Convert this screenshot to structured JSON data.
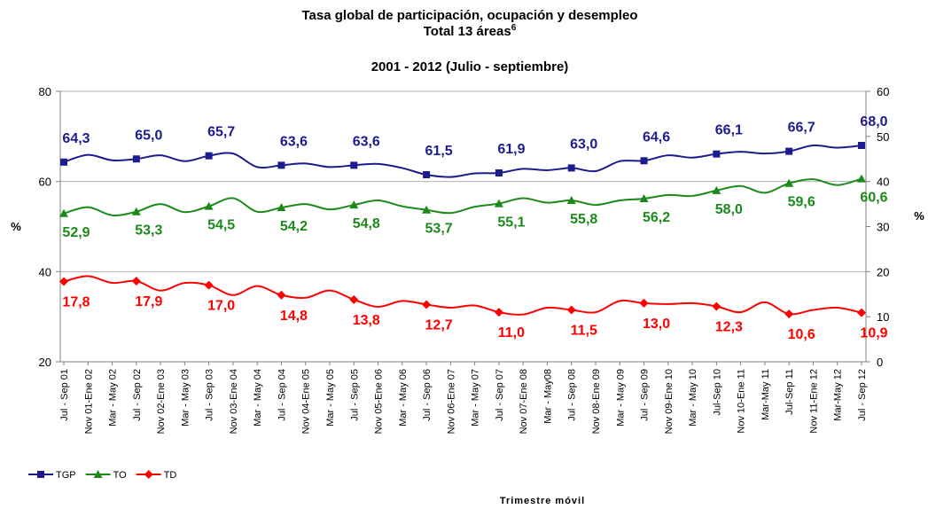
{
  "chart_data": {
    "type": "line",
    "title": "Tasa global de participación, ocupación y desempleo",
    "subtitle": "Total 13 áreas",
    "subtitle_note": "6",
    "period": "2001 - 2012 (Julio - septiembre)",
    "ylabel": "%",
    "y2label": "%",
    "xlabel": "Trimestre móvil",
    "categories": [
      "Jul - Sep 01",
      "Nov 01-Ene 02",
      "Mar - May 02",
      "Jul - Sep 02",
      "Nov 02-Ene 03",
      "Mar - May 03",
      "Jul - Sep 03",
      "Nov 03-Ene 04",
      "Mar - May 04",
      "Jul - Sep 04",
      "Nov 04-Ene 05",
      "Mar - May 05",
      "Jul - Sep 05",
      "Nov 05-Ene 06",
      "Mar - May 06",
      "Jul - Sep 06",
      "Nov 06-Ene 07",
      "Mar - May 07",
      "Jul - Sep 07",
      "Nov 07-Ene 08",
      "Mar - May08",
      "Jul - Sep 08",
      "Nov 08-Ene 09",
      "Mar - May 09",
      "Jul - Sep 09",
      "Nov 09-Ene 10",
      "Mar - May 10",
      "Jul-Sep 10",
      "Nov 10-Ene 11",
      "Mar-May 11",
      "Jul-Sep 11",
      "Nov 11-Ene 12",
      "Mar-May 12",
      "Jul - Sep 12"
    ],
    "series": [
      {
        "name": "TGP",
        "color": "#1c1c8e",
        "marker": "square",
        "axis": "y",
        "values": [
          64.3,
          65.9,
          64.7,
          65.0,
          65.8,
          64.5,
          65.7,
          66.2,
          63.2,
          63.6,
          64.0,
          63.2,
          63.6,
          63.9,
          63.0,
          61.5,
          61.0,
          61.8,
          61.9,
          62.8,
          62.5,
          63.0,
          62.3,
          64.5,
          64.6,
          65.8,
          65.3,
          66.1,
          66.6,
          66.2,
          66.7,
          68.0,
          67.5,
          68.0
        ],
        "value_labels": [
          "64,3",
          null,
          null,
          "65,0",
          null,
          null,
          "65,7",
          null,
          null,
          "63,6",
          null,
          null,
          "63,6",
          null,
          null,
          "61,5",
          null,
          null,
          "61,9",
          null,
          null,
          "63,0",
          null,
          null,
          "64,6",
          null,
          null,
          "66,1",
          null,
          null,
          "66,7",
          null,
          null,
          "68,0"
        ]
      },
      {
        "name": "TO",
        "color": "#1b8a1b",
        "marker": "triangle",
        "axis": "y",
        "values": [
          52.9,
          54.3,
          52.5,
          53.3,
          55.0,
          53.2,
          54.5,
          56.3,
          53.3,
          54.2,
          55.0,
          53.8,
          54.8,
          55.8,
          54.5,
          53.7,
          53.0,
          54.4,
          55.1,
          56.3,
          55.3,
          55.8,
          54.8,
          55.8,
          56.2,
          57.0,
          56.8,
          58.0,
          59.0,
          57.5,
          59.6,
          60.5,
          59.2,
          60.6
        ],
        "value_labels": [
          "52,9",
          null,
          null,
          "53,3",
          null,
          null,
          "54,5",
          null,
          null,
          "54,2",
          null,
          null,
          "54,8",
          null,
          null,
          "53,7",
          null,
          null,
          "55,1",
          null,
          null,
          "55,8",
          null,
          null,
          "56,2",
          null,
          null,
          "58,0",
          null,
          null,
          "59,6",
          null,
          null,
          "60,6"
        ]
      },
      {
        "name": "TD",
        "color": "#ff0000",
        "marker": "diamond",
        "axis": "y2",
        "values": [
          17.8,
          19.0,
          17.5,
          17.9,
          15.8,
          17.5,
          17.0,
          14.8,
          16.8,
          14.8,
          14.2,
          15.8,
          13.8,
          12.2,
          13.5,
          12.7,
          12.0,
          12.5,
          11.0,
          10.5,
          12.0,
          11.5,
          11.0,
          13.5,
          13.0,
          12.8,
          13.0,
          12.3,
          11.0,
          13.2,
          10.6,
          11.5,
          12.0,
          10.9
        ],
        "value_labels": [
          "17,8",
          null,
          null,
          "17,9",
          null,
          null,
          "17,0",
          null,
          null,
          "14,8",
          null,
          null,
          "13,8",
          null,
          null,
          "12,7",
          null,
          null,
          "11,0",
          null,
          null,
          "11,5",
          null,
          null,
          "13,0",
          null,
          null,
          "12,3",
          null,
          null,
          "10,6",
          null,
          null,
          "10,9"
        ]
      }
    ],
    "ylim": [
      20,
      80
    ],
    "yticks": [
      20,
      40,
      60,
      80
    ],
    "y2lim": [
      0,
      60
    ],
    "y2ticks": [
      0,
      10,
      20,
      30,
      40,
      50,
      60
    ],
    "grid": true,
    "legend": "bottom-left"
  }
}
